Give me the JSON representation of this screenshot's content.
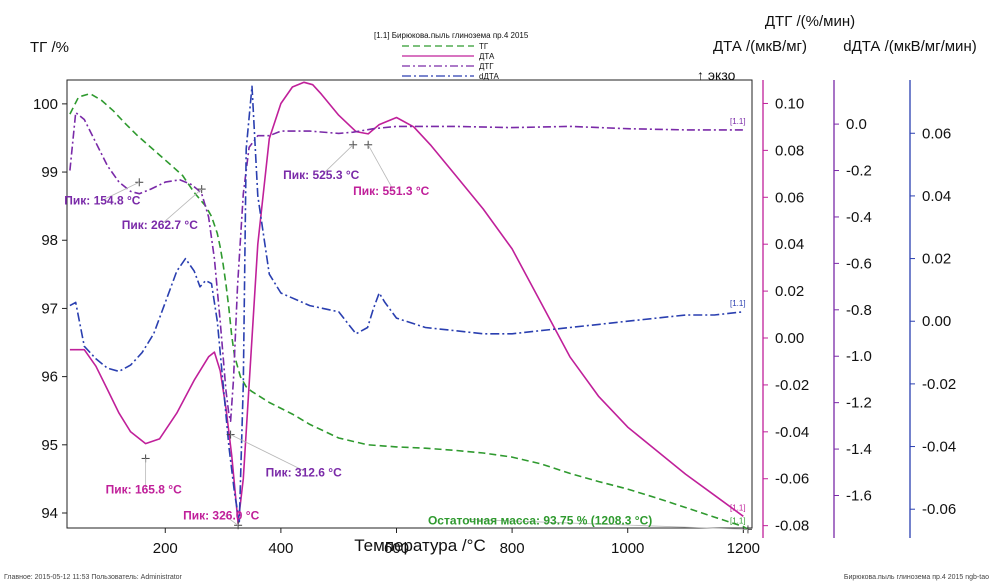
{
  "chart_data": {
    "type": "line",
    "legend_title": "[1.1] Бирюкова.пыль глинозема пр.4 2015",
    "legend_position": "top-center",
    "xlabel": "Температура /°С",
    "xlim": [
      30,
      1215
    ],
    "xticks": [
      "200",
      "400",
      "600",
      "800",
      "1000",
      "1200"
    ],
    "xtick_values": [
      200,
      400,
      600,
      800,
      1000,
      1200
    ],
    "axes": [
      {
        "id": "tg",
        "label": "ТГ /%",
        "color": "#111111",
        "ylim": [
          93.78,
          100.35
        ],
        "ticks": [
          "100",
          "99",
          "98",
          "97",
          "96",
          "95",
          "94"
        ],
        "tick_values": [
          100,
          99,
          98,
          97,
          96,
          95,
          94
        ]
      },
      {
        "id": "dta",
        "label": "ДТА /(мкВ/мг)",
        "color": "#c0209a",
        "ylim": [
          -0.081,
          0.11
        ],
        "ticks": [
          "0.10",
          "0.08",
          "0.06",
          "0.04",
          "0.02",
          "0.00",
          "-0.02",
          "-0.04",
          "-0.06",
          "-0.08"
        ],
        "tick_values": [
          0.1,
          0.08,
          0.06,
          0.04,
          0.02,
          0.0,
          -0.02,
          -0.04,
          -0.06,
          -0.08
        ]
      },
      {
        "id": "dtg",
        "label": "ДТГ /(%/мин)",
        "color": "#7a2aa8",
        "ylim": [
          -1.74,
          0.19
        ],
        "ticks": [
          "0.0",
          "-0.2",
          "-0.4",
          "-0.6",
          "-0.8",
          "-1.0",
          "-1.2",
          "-1.4",
          "-1.6"
        ],
        "tick_values": [
          0.0,
          -0.2,
          -0.4,
          -0.6,
          -0.8,
          -1.0,
          -1.2,
          -1.4,
          -1.6
        ]
      },
      {
        "id": "ddta",
        "label": "dДТА /(мкВ/мг/мин)",
        "color": "#2a3fb0",
        "ylim": [
          -0.066,
          0.077
        ],
        "ticks": [
          "0.06",
          "0.04",
          "0.02",
          "0.00",
          "-0.02",
          "-0.04",
          "-0.06"
        ],
        "tick_values": [
          0.06,
          0.04,
          0.02,
          0.0,
          -0.02,
          -0.04,
          -0.06
        ]
      }
    ],
    "exo_label": "↑ экзо",
    "series": [
      {
        "name": "ТГ",
        "axis": "tg",
        "color": "#2f9a2f",
        "dash": "7,4",
        "x": [
          35,
          50,
          70,
          90,
          110,
          130,
          150,
          170,
          190,
          210,
          230,
          250,
          270,
          280,
          290,
          295,
          300,
          305,
          310,
          315,
          320,
          330,
          340,
          350,
          380,
          420,
          450,
          500,
          550,
          600,
          650,
          700,
          750,
          800,
          850,
          900,
          950,
          1000,
          1050,
          1100,
          1150,
          1200,
          1208
        ],
        "y": [
          99.85,
          100.1,
          100.15,
          100.05,
          99.9,
          99.72,
          99.55,
          99.4,
          99.25,
          99.1,
          98.95,
          98.7,
          98.5,
          98.35,
          98.1,
          97.9,
          97.65,
          97.35,
          97.0,
          96.6,
          96.3,
          96.0,
          95.85,
          95.78,
          95.62,
          95.45,
          95.3,
          95.1,
          95.0,
          94.97,
          94.95,
          94.92,
          94.88,
          94.82,
          94.72,
          94.58,
          94.46,
          94.35,
          94.22,
          94.08,
          93.94,
          93.8,
          93.76
        ]
      },
      {
        "name": "ДТА",
        "axis": "dta",
        "color": "#c0209a",
        "dash": "",
        "x": [
          35,
          60,
          80,
          100,
          120,
          140,
          166,
          190,
          220,
          250,
          275,
          285,
          295,
          305,
          315,
          326,
          335,
          345,
          360,
          380,
          400,
          420,
          440,
          455,
          470,
          500,
          530,
          551,
          570,
          600,
          630,
          660,
          700,
          750,
          800,
          850,
          900,
          950,
          1000,
          1050,
          1100,
          1150,
          1200
        ],
        "y": [
          -0.005,
          -0.005,
          -0.012,
          -0.022,
          -0.032,
          -0.04,
          -0.045,
          -0.043,
          -0.032,
          -0.018,
          -0.008,
          -0.006,
          -0.014,
          -0.03,
          -0.05,
          -0.079,
          -0.06,
          -0.02,
          0.04,
          0.085,
          0.1,
          0.107,
          0.109,
          0.108,
          0.104,
          0.095,
          0.088,
          0.087,
          0.091,
          0.094,
          0.09,
          0.082,
          0.07,
          0.055,
          0.038,
          0.015,
          -0.008,
          -0.025,
          -0.038,
          -0.048,
          -0.058,
          -0.067,
          -0.076
        ]
      },
      {
        "name": "ДТГ",
        "axis": "dtg",
        "color": "#7a2aa8",
        "dash": "8,3,2,3",
        "x": [
          35,
          45,
          60,
          80,
          100,
          120,
          140,
          155,
          175,
          200,
          225,
          245,
          255,
          263,
          275,
          285,
          295,
          300,
          305,
          310,
          313,
          318,
          325,
          335,
          345,
          360,
          380,
          400,
          450,
          500,
          525,
          560,
          600,
          700,
          800,
          900,
          1000,
          1100,
          1200
        ],
        "y": [
          -0.2,
          0.05,
          0.02,
          -0.08,
          -0.18,
          -0.25,
          -0.29,
          -0.3,
          -0.28,
          -0.25,
          -0.24,
          -0.26,
          -0.28,
          -0.3,
          -0.4,
          -0.58,
          -0.85,
          -1.0,
          -1.15,
          -1.25,
          -1.28,
          -1.1,
          -0.7,
          -0.3,
          -0.1,
          -0.05,
          -0.05,
          -0.03,
          -0.03,
          -0.04,
          -0.035,
          -0.02,
          -0.01,
          -0.01,
          -0.015,
          -0.01,
          -0.02,
          -0.025,
          -0.025
        ]
      },
      {
        "name": "dДТА",
        "axis": "ddta",
        "color": "#2a3fb0",
        "dash": "9,3,2,3",
        "x": [
          35,
          45,
          60,
          80,
          100,
          120,
          140,
          160,
          180,
          200,
          220,
          235,
          250,
          260,
          270,
          280,
          290,
          300,
          310,
          320,
          328,
          335,
          340,
          350,
          360,
          380,
          400,
          450,
          500,
          530,
          550,
          560,
          570,
          580,
          600,
          650,
          700,
          750,
          800,
          850,
          900,
          950,
          1000,
          1050,
          1100,
          1150,
          1200
        ],
        "y": [
          0.005,
          0.006,
          -0.008,
          -0.012,
          -0.015,
          -0.016,
          -0.014,
          -0.01,
          -0.004,
          0.006,
          0.016,
          0.02,
          0.016,
          0.011,
          0.013,
          0.012,
          0.0,
          -0.02,
          -0.04,
          -0.055,
          -0.064,
          -0.02,
          0.055,
          0.075,
          0.04,
          0.015,
          0.009,
          0.005,
          0.003,
          -0.004,
          -0.002,
          0.004,
          0.009,
          0.006,
          0.001,
          -0.002,
          -0.003,
          -0.004,
          -0.004,
          -0.003,
          -0.002,
          -0.001,
          0.0,
          0.001,
          0.002,
          0.002,
          0.003
        ]
      }
    ],
    "annotations": [
      {
        "text": "Пик: 154.8 °C",
        "color": "#7a2aa8",
        "x": 155,
        "y": 98.85,
        "axis": "tg"
      },
      {
        "text": "Пик: 262.7 °C",
        "color": "#7a2aa8",
        "x": 263,
        "y": 98.75,
        "axis": "tg"
      },
      {
        "text": "Пик: 525.3 °C",
        "color": "#7a2aa8",
        "x": 525,
        "y": 99.4,
        "axis": "tg"
      },
      {
        "text": "Пик: 551.3 °C",
        "color": "#c0209a",
        "x": 551,
        "y": 99.4,
        "axis": "tg"
      },
      {
        "text": "Пик: 165.8 °C",
        "color": "#c0209a",
        "x": 166,
        "y": 94.8,
        "axis": "tg"
      },
      {
        "text": "Пик: 312.6 °C",
        "color": "#7a2aa8",
        "x": 313,
        "y": 95.15,
        "axis": "tg"
      },
      {
        "text": "Пик: 326.0 °C",
        "color": "#c0209a",
        "x": 326,
        "y": 93.82,
        "axis": "tg"
      },
      {
        "text": "Остаточная масса: 93.75 % (1208.3 °C)",
        "color": "#2f9a2f",
        "x": 1208,
        "y": 93.76,
        "axis": "tg"
      }
    ],
    "series_tags": [
      "[1.1]",
      "[1.1]",
      "[1.1]",
      "[1.1]"
    ]
  },
  "footer": {
    "left": "Главное:  2015-05-12 11:53    Пользователь: Administrator",
    "right": "Бирюкова.пыль глинозема пр.4 2015 ngb-tao"
  }
}
